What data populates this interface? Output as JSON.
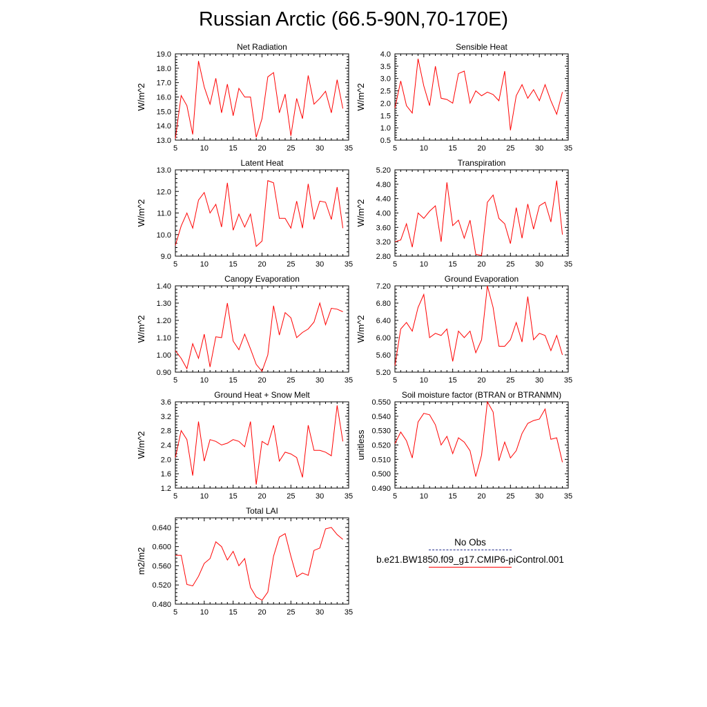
{
  "title": "Russian Arctic (66.5-90N,70-170E)",
  "colors": {
    "series": "#ff0000",
    "obs": "#1f2a8a",
    "axis": "#000000"
  },
  "legend": {
    "obs_label": "No Obs",
    "model_label": "b.e21.BW1850.f09_g17.CMIP6-piControl.001"
  },
  "chart_data": [
    {
      "type": "line",
      "title": "Net Radiation",
      "ylabel": "W/m^2",
      "xlim": [
        5,
        35
      ],
      "xticks": [
        5,
        10,
        15,
        20,
        25,
        30,
        35
      ],
      "ylim": [
        13.0,
        19.0
      ],
      "yticks": [
        13.0,
        14.0,
        15.0,
        16.0,
        17.0,
        18.0,
        19.0
      ],
      "ydec": 1,
      "x": [
        5,
        6,
        7,
        8,
        9,
        10,
        11,
        12,
        13,
        14,
        15,
        16,
        17,
        18,
        19,
        20,
        21,
        22,
        23,
        24,
        25,
        26,
        27,
        28,
        29,
        30,
        31,
        32,
        33,
        34
      ],
      "values": [
        13.1,
        16.1,
        15.4,
        13.4,
        18.5,
        16.7,
        15.5,
        17.3,
        14.9,
        16.9,
        14.7,
        16.6,
        16.0,
        16.0,
        13.2,
        14.5,
        17.4,
        17.7,
        14.9,
        16.2,
        13.3,
        15.9,
        14.5,
        17.5,
        15.5,
        15.9,
        16.4,
        14.9,
        17.2,
        15.2
      ]
    },
    {
      "type": "line",
      "title": "Sensible Heat",
      "ylabel": "W/m^2",
      "xlim": [
        5,
        35
      ],
      "xticks": [
        5,
        10,
        15,
        20,
        25,
        30,
        35
      ],
      "ylim": [
        0.5,
        4.0
      ],
      "yticks": [
        0.5,
        1.0,
        1.5,
        2.0,
        2.5,
        3.0,
        3.5,
        4.0
      ],
      "ydec": 1,
      "x": [
        5,
        6,
        7,
        8,
        9,
        10,
        11,
        12,
        13,
        14,
        15,
        16,
        17,
        18,
        19,
        20,
        21,
        22,
        23,
        24,
        25,
        26,
        27,
        28,
        29,
        30,
        31,
        32,
        33,
        34
      ],
      "values": [
        1.8,
        2.9,
        1.9,
        1.6,
        3.8,
        2.7,
        1.9,
        3.5,
        2.2,
        2.15,
        2.0,
        3.2,
        3.3,
        2.0,
        2.5,
        2.3,
        2.45,
        2.35,
        2.1,
        3.3,
        0.9,
        2.3,
        2.75,
        2.2,
        2.55,
        2.1,
        2.75,
        2.1,
        1.55,
        2.45
      ]
    },
    {
      "type": "line",
      "title": "Latent Heat",
      "ylabel": "W/m^2",
      "xlim": [
        5,
        35
      ],
      "xticks": [
        5,
        10,
        15,
        20,
        25,
        30,
        35
      ],
      "ylim": [
        9.0,
        13.0
      ],
      "yticks": [
        9.0,
        10.0,
        11.0,
        12.0,
        13.0
      ],
      "ydec": 1,
      "x": [
        5,
        6,
        7,
        8,
        9,
        10,
        11,
        12,
        13,
        14,
        15,
        16,
        17,
        18,
        19,
        20,
        21,
        22,
        23,
        24,
        25,
        26,
        27,
        28,
        29,
        30,
        31,
        32,
        33,
        34
      ],
      "values": [
        9.5,
        10.4,
        11.0,
        10.3,
        11.6,
        11.95,
        11.0,
        11.4,
        10.35,
        12.4,
        10.2,
        10.95,
        10.35,
        10.95,
        9.45,
        9.7,
        12.5,
        12.4,
        10.75,
        10.75,
        10.3,
        11.55,
        10.3,
        12.35,
        10.7,
        11.55,
        11.5,
        10.7,
        12.2,
        10.3
      ]
    },
    {
      "type": "line",
      "title": "Transpiration",
      "ylabel": "W/m^2",
      "xlim": [
        5,
        35
      ],
      "xticks": [
        5,
        10,
        15,
        20,
        25,
        30,
        35
      ],
      "ylim": [
        2.8,
        5.2
      ],
      "yticks": [
        2.8,
        3.2,
        3.6,
        4.0,
        4.4,
        4.8,
        5.2
      ],
      "ydec": 2,
      "x": [
        5,
        6,
        7,
        8,
        9,
        10,
        11,
        12,
        13,
        14,
        15,
        16,
        17,
        18,
        19,
        20,
        21,
        22,
        23,
        24,
        25,
        26,
        27,
        28,
        29,
        30,
        31,
        32,
        33,
        34
      ],
      "values": [
        3.2,
        3.25,
        3.7,
        3.05,
        4.0,
        3.85,
        4.05,
        4.2,
        3.2,
        4.85,
        3.65,
        3.8,
        3.3,
        3.8,
        2.85,
        2.82,
        4.3,
        4.5,
        3.85,
        3.7,
        3.15,
        4.15,
        3.3,
        4.25,
        3.55,
        4.2,
        4.3,
        3.75,
        4.9,
        3.4
      ]
    },
    {
      "type": "line",
      "title": "Canopy Evaporation",
      "ylabel": "W/m^2",
      "xlim": [
        5,
        35
      ],
      "xticks": [
        5,
        10,
        15,
        20,
        25,
        30,
        35
      ],
      "ylim": [
        0.9,
        1.4
      ],
      "yticks": [
        0.9,
        1.0,
        1.1,
        1.2,
        1.3,
        1.4
      ],
      "ydec": 2,
      "x": [
        5,
        6,
        7,
        8,
        9,
        10,
        11,
        12,
        13,
        14,
        15,
        16,
        17,
        18,
        19,
        20,
        21,
        22,
        23,
        24,
        25,
        26,
        27,
        28,
        29,
        30,
        31,
        32,
        33,
        34
      ],
      "values": [
        1.025,
        0.98,
        0.92,
        1.065,
        0.98,
        1.12,
        0.93,
        1.105,
        1.1,
        1.3,
        1.08,
        1.03,
        1.12,
        1.035,
        0.945,
        0.905,
        1.0,
        1.285,
        1.115,
        1.245,
        1.215,
        1.1,
        1.13,
        1.15,
        1.19,
        1.3,
        1.175,
        1.27,
        1.265,
        1.25
      ]
    },
    {
      "type": "line",
      "title": "Ground Evaporation",
      "ylabel": "W/m^2",
      "xlim": [
        5,
        35
      ],
      "xticks": [
        5,
        10,
        15,
        20,
        25,
        30,
        35
      ],
      "ylim": [
        5.2,
        7.2
      ],
      "yticks": [
        5.2,
        5.6,
        6.0,
        6.4,
        6.8,
        7.2
      ],
      "ydec": 2,
      "x": [
        5,
        6,
        7,
        8,
        9,
        10,
        11,
        12,
        13,
        14,
        15,
        16,
        17,
        18,
        19,
        20,
        21,
        22,
        23,
        24,
        25,
        26,
        27,
        28,
        29,
        30,
        31,
        32,
        33,
        34
      ],
      "values": [
        5.35,
        6.2,
        6.35,
        6.15,
        6.7,
        7.0,
        6.0,
        6.1,
        6.05,
        6.2,
        5.45,
        6.15,
        6.0,
        6.15,
        5.65,
        5.95,
        7.2,
        6.7,
        5.8,
        5.8,
        5.95,
        6.35,
        5.9,
        6.95,
        5.95,
        6.1,
        6.05,
        5.7,
        6.05,
        5.6
      ]
    },
    {
      "type": "line",
      "title": "Ground Heat + Snow Melt",
      "ylabel": "W/m^2",
      "xlim": [
        5,
        35
      ],
      "xticks": [
        5,
        10,
        15,
        20,
        25,
        30,
        35
      ],
      "ylim": [
        1.2,
        3.6
      ],
      "yticks": [
        1.2,
        1.6,
        2.0,
        2.4,
        2.8,
        3.2,
        3.6
      ],
      "ydec": 1,
      "x": [
        5,
        6,
        7,
        8,
        9,
        10,
        11,
        12,
        13,
        14,
        15,
        16,
        17,
        18,
        19,
        20,
        21,
        22,
        23,
        24,
        25,
        26,
        27,
        28,
        29,
        30,
        31,
        32,
        33,
        34
      ],
      "values": [
        2.05,
        2.8,
        2.55,
        1.55,
        3.05,
        1.95,
        2.55,
        2.5,
        2.4,
        2.45,
        2.55,
        2.5,
        2.35,
        3.05,
        1.3,
        2.5,
        2.4,
        2.95,
        1.95,
        2.2,
        2.15,
        2.05,
        1.5,
        2.95,
        2.25,
        2.25,
        2.2,
        2.1,
        3.5,
        2.5
      ]
    },
    {
      "type": "line",
      "title": "Soil moisture factor (BTRAN or BTRANMN)",
      "ylabel": "unitless",
      "xlim": [
        5,
        35
      ],
      "xticks": [
        5,
        10,
        15,
        20,
        25,
        30,
        35
      ],
      "ylim": [
        0.49,
        0.55
      ],
      "yticks": [
        0.49,
        0.5,
        0.51,
        0.52,
        0.53,
        0.54,
        0.55
      ],
      "ydec": 3,
      "x": [
        5,
        6,
        7,
        8,
        9,
        10,
        11,
        12,
        13,
        14,
        15,
        16,
        17,
        18,
        19,
        20,
        21,
        22,
        23,
        24,
        25,
        26,
        27,
        28,
        29,
        30,
        31,
        32,
        33,
        34
      ],
      "values": [
        0.521,
        0.529,
        0.523,
        0.511,
        0.536,
        0.542,
        0.541,
        0.534,
        0.52,
        0.526,
        0.514,
        0.525,
        0.522,
        0.516,
        0.498,
        0.513,
        0.55,
        0.543,
        0.509,
        0.522,
        0.511,
        0.516,
        0.528,
        0.535,
        0.537,
        0.538,
        0.545,
        0.524,
        0.525,
        0.508
      ]
    },
    {
      "type": "line",
      "title": "Total LAI",
      "ylabel": "m2/m2",
      "xlim": [
        5,
        35
      ],
      "xticks": [
        5,
        10,
        15,
        20,
        25,
        30,
        35
      ],
      "ylim": [
        0.48,
        0.66
      ],
      "yticks": [
        0.48,
        0.52,
        0.56,
        0.6,
        0.64
      ],
      "ydec": 3,
      "x": [
        5,
        6,
        7,
        8,
        9,
        10,
        11,
        12,
        13,
        14,
        15,
        16,
        17,
        18,
        19,
        20,
        21,
        22,
        23,
        24,
        25,
        26,
        27,
        28,
        29,
        30,
        31,
        32,
        33,
        34
      ],
      "values": [
        0.582,
        0.582,
        0.521,
        0.518,
        0.538,
        0.565,
        0.575,
        0.61,
        0.6,
        0.572,
        0.59,
        0.56,
        0.575,
        0.515,
        0.495,
        0.488,
        0.505,
        0.58,
        0.62,
        0.627,
        0.58,
        0.537,
        0.545,
        0.54,
        0.592,
        0.597,
        0.637,
        0.64,
        0.625,
        0.615
      ]
    }
  ]
}
